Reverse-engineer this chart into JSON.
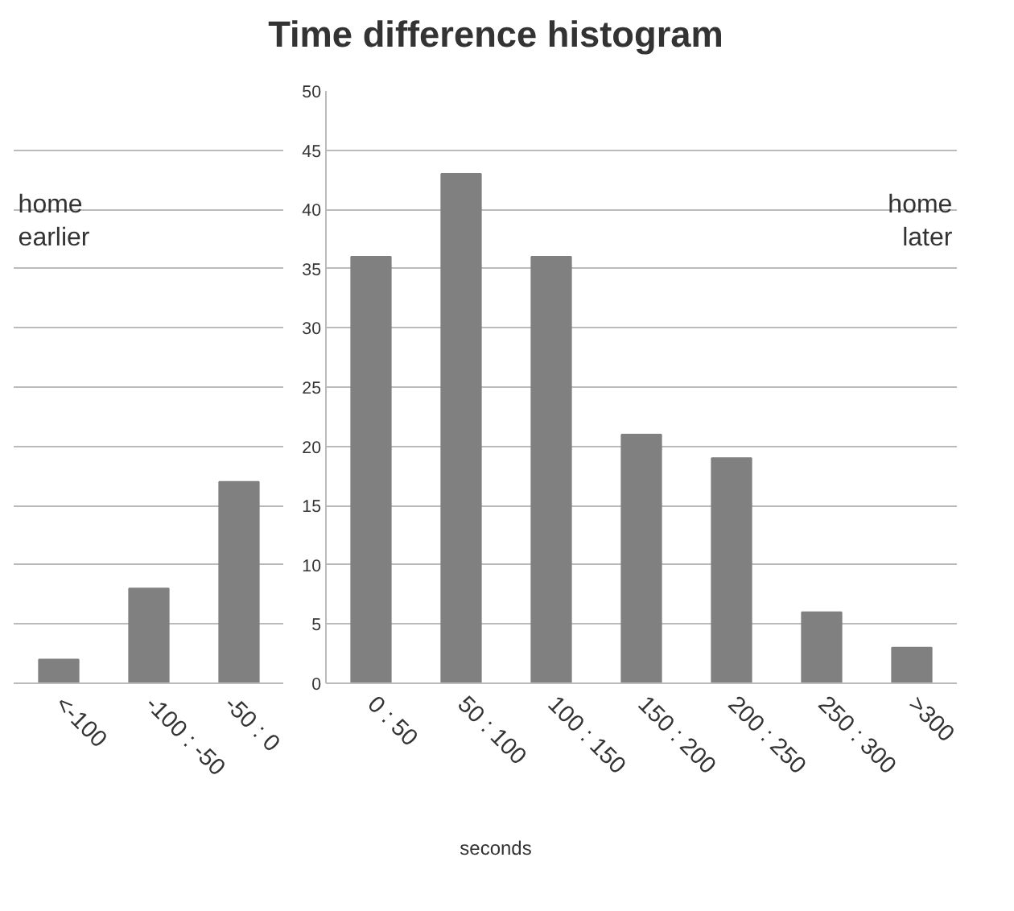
{
  "chart_data": {
    "type": "bar",
    "title": "Time difference histogram",
    "xlabel": "seconds",
    "categories": [
      "<-100",
      "-100 : -50",
      "-50 : 0",
      "0 : 50",
      "50 : 100",
      "100 : 150",
      "150 : 200",
      "200 : 250",
      "250 : 300",
      ">300"
    ],
    "values": [
      2,
      8,
      17,
      36,
      43,
      36,
      21,
      19,
      6,
      3
    ],
    "color": "#808080",
    "ylim": [
      0,
      50
    ],
    "yticks": [
      0,
      5,
      10,
      15,
      20,
      25,
      30,
      35,
      40,
      45,
      50
    ],
    "grid": "y",
    "annotations": [
      "home earlier",
      "home later"
    ]
  }
}
